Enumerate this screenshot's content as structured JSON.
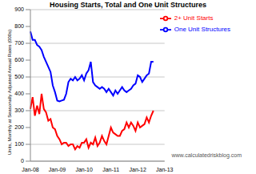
{
  "chart_data": {
    "type": "line",
    "title": "Housing Starts, Total and One Unit Structures",
    "y_label": "Units, Monthly at Seasonally Adjusted Annual Rates (000s)",
    "categories": [
      "Jan-08",
      null,
      null,
      null,
      null,
      null,
      null,
      null,
      null,
      null,
      null,
      null,
      "Jan-09",
      null,
      null,
      null,
      null,
      null,
      null,
      null,
      null,
      null,
      null,
      null,
      "Jan-10",
      null,
      null,
      null,
      null,
      null,
      null,
      null,
      null,
      null,
      null,
      null,
      "Jan-11",
      null,
      null,
      null,
      null,
      null,
      null,
      null,
      null,
      null,
      null,
      null,
      "Jan-12",
      null,
      null,
      null,
      null,
      null,
      null,
      null,
      null,
      null,
      null,
      null,
      "Jan-13"
    ],
    "series": [
      {
        "name": "One Unit Structures",
        "color": "#0000ff",
        "values": [
          770,
          720,
          720,
          690,
          680,
          660,
          620,
          590,
          560,
          530,
          450,
          410,
          360,
          355,
          360,
          365,
          400,
          470,
          490,
          480,
          500,
          480,
          490,
          510,
          480,
          520,
          540,
          590,
          470,
          450,
          440,
          430,
          440,
          430,
          410,
          430,
          410,
          390,
          420,
          400,
          420,
          440,
          420,
          410,
          420,
          430,
          450,
          460,
          510,
          500,
          470,
          490,
          510,
          520,
          590,
          590,
          null,
          null,
          null,
          null,
          null
        ]
      },
      {
        "name": "2+ Unit Starts",
        "color": "#ff0000",
        "values": [
          310,
          380,
          270,
          330,
          280,
          400,
          310,
          290,
          240,
          250,
          200,
          190,
          150,
          130,
          100,
          110,
          110,
          90,
          100,
          100,
          70,
          90,
          80,
          110,
          110,
          130,
          80,
          110,
          100,
          140,
          90,
          110,
          150,
          120,
          100,
          150,
          200,
          170,
          160,
          150,
          150,
          180,
          190,
          230,
          200,
          230,
          210,
          180,
          230,
          200,
          210,
          220,
          260,
          230,
          270,
          300,
          null,
          null,
          null,
          null,
          null
        ]
      }
    ],
    "ylim": [
      0,
      900
    ],
    "yticks": [
      0,
      100,
      200,
      300,
      400,
      500,
      600,
      700,
      800,
      900
    ],
    "grid": true,
    "legend": "upper right",
    "annotations": [
      "www.calculatedriskblog.com"
    ]
  }
}
